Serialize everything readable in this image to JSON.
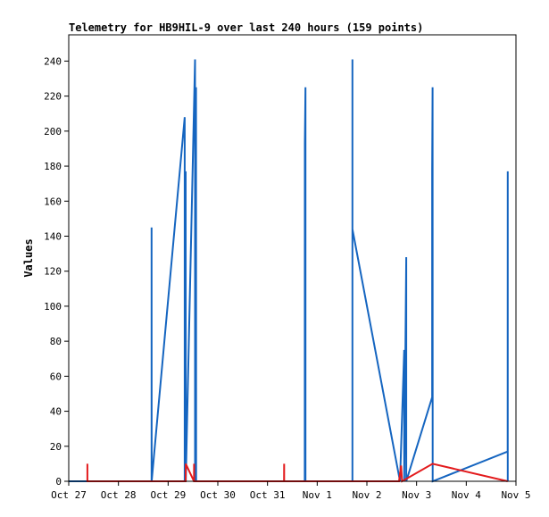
{
  "chart_data": {
    "type": "line",
    "title": "Telemetry for HB9HIL-9 over last 240 hours (159 points)",
    "xlabel": "",
    "ylabel": "Values",
    "xlim": [
      "2025-10-27 00:00",
      "2025-11-05 00:00"
    ],
    "ylim": [
      0,
      255
    ],
    "grid": false,
    "legend": "none",
    "x_ticks": [
      "Oct 27",
      "Oct 28",
      "Oct 29",
      "Oct 30",
      "Oct 31",
      "Nov 1",
      "Nov 2",
      "Nov 3",
      "Nov 4",
      "Nov 5"
    ],
    "y_ticks": [
      0,
      20,
      40,
      60,
      80,
      100,
      120,
      140,
      160,
      180,
      200,
      220,
      240
    ],
    "series": [
      {
        "color": "#1565c0",
        "points": [
          [
            "2025-10-27 00:00",
            0
          ],
          [
            "2025-10-28 16:00",
            0
          ],
          [
            "2025-10-28 16:01",
            145
          ],
          [
            "2025-10-28 16:02",
            0
          ],
          [
            "2025-10-29 08:00",
            208
          ],
          [
            "2025-10-29 08:01",
            0
          ],
          [
            "2025-10-29 08:30",
            177
          ],
          [
            "2025-10-29 08:31",
            0
          ],
          [
            "2025-10-29 13:00",
            241
          ],
          [
            "2025-10-29 13:01",
            0
          ],
          [
            "2025-10-29 13:30",
            225
          ],
          [
            "2025-10-29 13:31",
            0
          ],
          [
            "2025-10-31 18:00",
            0
          ],
          [
            "2025-10-31 18:01",
            193
          ],
          [
            "2025-10-31 18:20",
            225
          ],
          [
            "2025-10-31 18:21",
            0
          ],
          [
            "2025-11-01 17:00",
            0
          ],
          [
            "2025-11-01 17:01",
            241
          ],
          [
            "2025-11-01 17:02",
            144
          ],
          [
            "2025-11-02 16:00",
            0
          ],
          [
            "2025-11-02 18:00",
            75
          ],
          [
            "2025-11-02 18:01",
            0
          ],
          [
            "2025-11-02 19:00",
            128
          ],
          [
            "2025-11-02 19:01",
            0
          ],
          [
            "2025-11-03 07:30",
            48
          ],
          [
            "2025-11-03 07:31",
            178
          ],
          [
            "2025-11-03 07:45",
            225
          ],
          [
            "2025-11-03 07:46",
            0
          ],
          [
            "2025-11-04 20:00",
            17
          ],
          [
            "2025-11-04 20:01",
            177
          ],
          [
            "2025-11-04 20:02",
            0
          ]
        ]
      },
      {
        "color": "#e31a1c",
        "points": [
          [
            "2025-10-27 09:00",
            10
          ],
          [
            "2025-10-27 09:01",
            0
          ],
          [
            "2025-10-29 08:30",
            0
          ],
          [
            "2025-10-29 08:31",
            10
          ],
          [
            "2025-10-29 12:30",
            0
          ],
          [
            "2025-10-29 12:31",
            10
          ],
          [
            "2025-10-29 12:32",
            0
          ],
          [
            "2025-10-31 08:00",
            0
          ],
          [
            "2025-10-31 08:01",
            10
          ],
          [
            "2025-10-31 08:02",
            0
          ],
          [
            "2025-11-02 15:30",
            0
          ],
          [
            "2025-11-02 16:30",
            9
          ],
          [
            "2025-11-02 17:00",
            0
          ],
          [
            "2025-11-03 07:45",
            10
          ],
          [
            "2025-11-04 20:00",
            0
          ]
        ]
      }
    ]
  }
}
